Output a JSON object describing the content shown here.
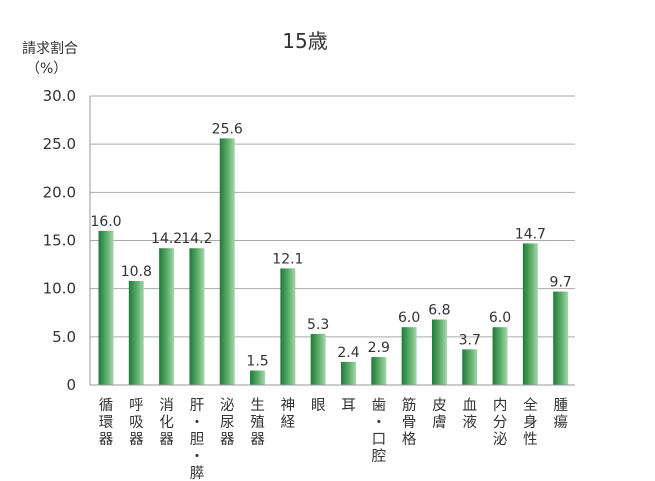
{
  "chart_data": {
    "type": "bar",
    "title": "15歳",
    "ylabel_line1": "請求割合",
    "ylabel_line2": "（%）",
    "ylim": [
      0,
      30
    ],
    "yticks": [
      "0",
      "5.0",
      "10.0",
      "15.0",
      "20.0",
      "25.0",
      "30.0"
    ],
    "categories": [
      "循環器",
      "呼吸器",
      "消化器",
      "肝・胆・膵",
      "泌尿器",
      "生殖器",
      "神経",
      "眼",
      "耳",
      "歯・口腔",
      "筋骨格",
      "皮膚",
      "血液",
      "内分泌",
      "全身性",
      "腫瘍"
    ],
    "values": [
      16.0,
      10.8,
      14.2,
      14.2,
      25.6,
      1.5,
      12.1,
      5.3,
      2.4,
      2.9,
      6.0,
      6.8,
      3.7,
      6.0,
      14.7,
      9.7
    ],
    "value_labels": [
      "16.0",
      "10.8",
      "14.2",
      "14.2",
      "25.6",
      "1.5",
      "12.1",
      "5.3",
      "2.4",
      "2.9",
      "6.0",
      "6.8",
      "3.7",
      "6.0",
      "14.7",
      "9.7"
    ],
    "grid": true,
    "bar_color_dark": "#1f7a3a",
    "bar_color_light": "#9fd3a8",
    "grid_color": "#aaaaaa"
  }
}
